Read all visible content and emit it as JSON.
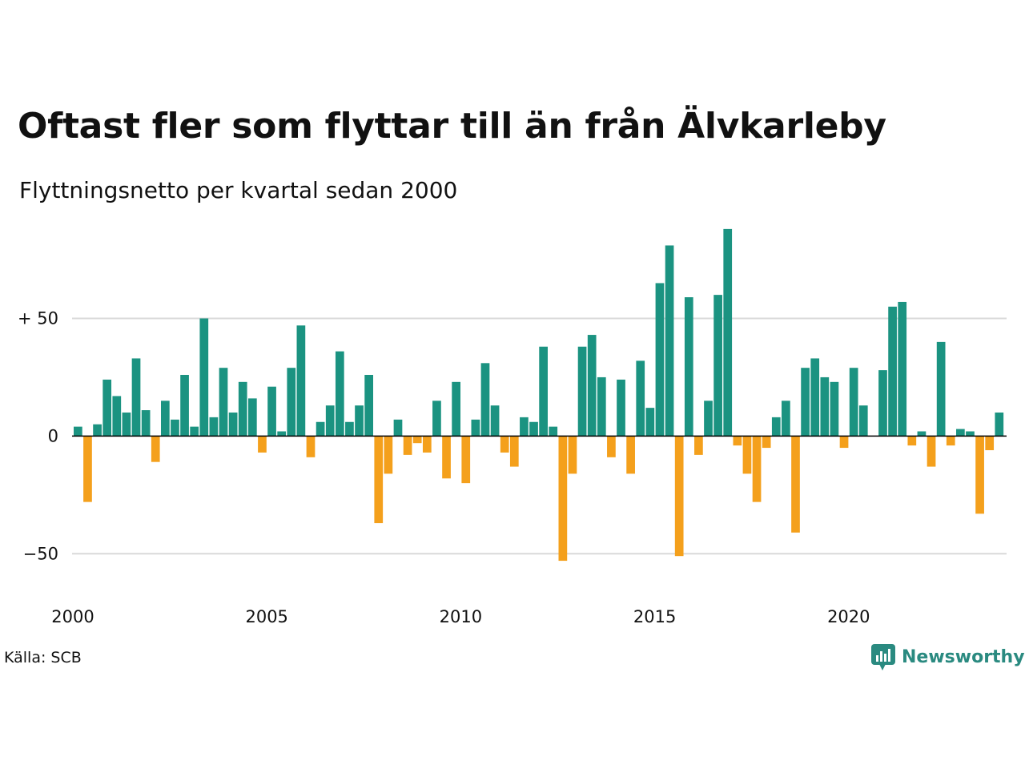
{
  "title": "Oftast fler som flyttar till än från Älvkarleby",
  "subtitle": "Flyttningsnetto per kvartal sedan 2000",
  "source": "Källa: SCB",
  "brand": "Newsworthy",
  "colors": {
    "positive": "#1b9381",
    "negative": "#f4a01c",
    "grid": "#d9d9d9",
    "baseline": "#000000",
    "brand": "#2a8a80"
  },
  "icons": {
    "logo": "bar-chart-speech-bubble-icon"
  },
  "chart_data": {
    "type": "bar",
    "title": "Oftast fler som flyttar till än från Älvkarleby",
    "subtitle": "Flyttningsnetto per kvartal sedan 2000",
    "ylim": [
      -70,
      90
    ],
    "x_range": [
      2000,
      2024
    ],
    "grid": true,
    "y_ticks": [
      {
        "value": 50,
        "label": "+ 50"
      },
      {
        "value": 0,
        "label": "0"
      },
      {
        "value": -50,
        "label": "−50"
      }
    ],
    "x_ticks": [
      {
        "value": 2000,
        "label": "2000"
      },
      {
        "value": 2005,
        "label": "2005"
      },
      {
        "value": 2010,
        "label": "2010"
      },
      {
        "value": 2015,
        "label": "2015"
      },
      {
        "value": 2020,
        "label": "2020"
      }
    ],
    "categories": [
      "2000K1",
      "2000K2",
      "2000K3",
      "2000K4",
      "2001K1",
      "2001K2",
      "2001K3",
      "2001K4",
      "2002K1",
      "2002K2",
      "2002K3",
      "2002K4",
      "2003K1",
      "2003K2",
      "2003K3",
      "2003K4",
      "2004K1",
      "2004K2",
      "2004K3",
      "2004K4",
      "2005K1",
      "2005K2",
      "2005K3",
      "2005K4",
      "2006K1",
      "2006K2",
      "2006K3",
      "2006K4",
      "2007K1",
      "2007K2",
      "2007K3",
      "2007K4",
      "2008K1",
      "2008K2",
      "2008K3",
      "2008K4",
      "2009K1",
      "2009K2",
      "2009K3",
      "2009K4",
      "2010K1",
      "2010K2",
      "2010K3",
      "2010K4",
      "2011K1",
      "2011K2",
      "2011K3",
      "2011K4",
      "2012K1",
      "2012K2",
      "2012K3",
      "2012K4",
      "2013K1",
      "2013K2",
      "2013K3",
      "2013K4",
      "2014K1",
      "2014K2",
      "2014K3",
      "2014K4",
      "2015K1",
      "2015K2",
      "2015K3",
      "2015K4",
      "2016K1",
      "2016K2",
      "2016K3",
      "2016K4",
      "2017K1",
      "2017K2",
      "2017K3",
      "2017K4",
      "2018K1",
      "2018K2",
      "2018K3",
      "2018K4",
      "2019K1",
      "2019K2",
      "2019K3",
      "2019K4",
      "2020K1",
      "2020K2",
      "2020K3",
      "2020K4",
      "2021K1",
      "2021K2",
      "2021K3",
      "2021K4",
      "2022K1",
      "2022K2",
      "2022K3",
      "2022K4",
      "2023K1",
      "2023K2",
      "2023K3",
      "2023K4",
      "2024K1"
    ],
    "values": [
      4,
      -28,
      5,
      24,
      17,
      10,
      33,
      11,
      -11,
      15,
      7,
      26,
      4,
      50,
      8,
      29,
      10,
      23,
      16,
      -7,
      21,
      2,
      29,
      47,
      -9,
      6,
      13,
      36,
      6,
      13,
      26,
      -37,
      -16,
      7,
      -8,
      -3,
      -7,
      15,
      -18,
      23,
      -20,
      7,
      31,
      13,
      -7,
      -13,
      8,
      6,
      38,
      4,
      -53,
      -16,
      38,
      43,
      25,
      -9,
      24,
      -16,
      32,
      12,
      65,
      81,
      -51,
      59,
      -8,
      15,
      60,
      88,
      -4,
      -16,
      -28,
      -5,
      8,
      15,
      -41,
      29,
      33,
      25,
      23,
      -5,
      29,
      13,
      0,
      28,
      55,
      57,
      -4,
      2,
      -13,
      40,
      -4,
      3,
      2,
      -33,
      -6,
      10,
      0
    ]
  }
}
